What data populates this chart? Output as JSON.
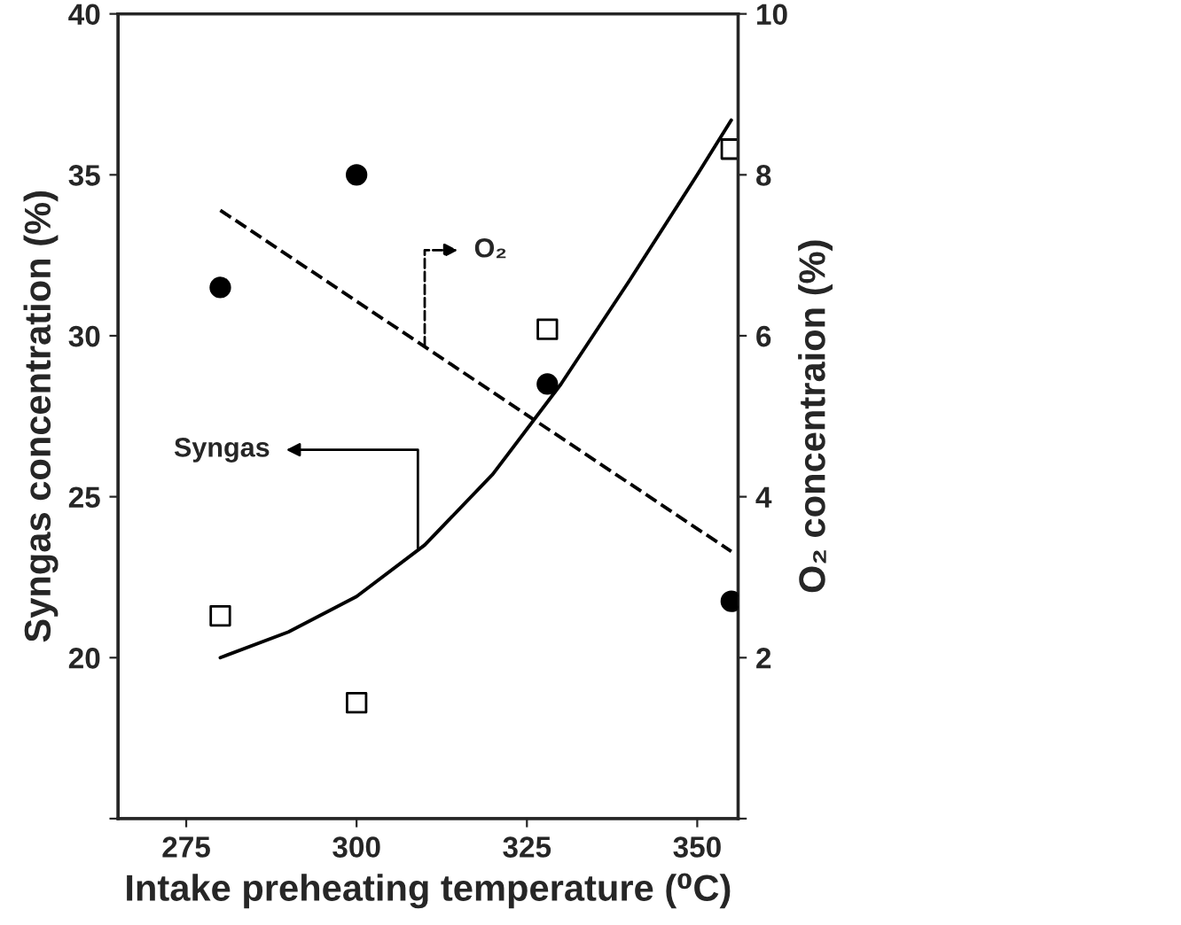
{
  "chart_data": {
    "type": "scatter",
    "xlabel": "Intake preheating temperature (⁰C)",
    "ylabel": "Syngas concentration (%)",
    "y2label": "O₂ concentraion (%)",
    "xlim": [
      265,
      356
    ],
    "xticks": [
      275,
      300,
      325,
      350
    ],
    "ylim": [
      15,
      40
    ],
    "yticks": [
      {
        "value": 15,
        "label": null
      },
      20,
      25,
      30,
      35,
      40
    ],
    "y2lim": [
      0,
      10
    ],
    "y2ticks": [
      {
        "value": 0,
        "label": null
      },
      2,
      4,
      6,
      8,
      10
    ],
    "legend": false,
    "grid": false,
    "series": [
      {
        "marker": "square",
        "color": "#000000",
        "x": [
          280,
          300,
          328,
          355
        ],
        "values": [
          21.3,
          18.6,
          30.2,
          35.8
        ]
      },
      {
        "type": "line",
        "line_style": "solid",
        "color": "#000000",
        "x": [
          280,
          290,
          300,
          310,
          320,
          330,
          340,
          350,
          355
        ],
        "values": [
          20.0,
          20.8,
          21.9,
          23.5,
          25.7,
          28.5,
          31.7,
          35.0,
          36.7
        ]
      },
      {
        "marker": "circle",
        "color": "#000000",
        "axis": "y2",
        "x": [
          280,
          300,
          328,
          355
        ],
        "values": [
          6.6,
          8.0,
          5.4,
          2.7
        ]
      },
      {
        "type": "line",
        "line_style": "dashed",
        "color": "#000000",
        "axis": "y2",
        "x": [
          280,
          355
        ],
        "values": [
          7.56,
          3.32
        ]
      }
    ],
    "annotations": [
      {
        "text": "Syngas",
        "x": 309,
        "y": 23.4
      },
      {
        "text": "O₂",
        "x": 310,
        "y": 29.6
      }
    ]
  }
}
